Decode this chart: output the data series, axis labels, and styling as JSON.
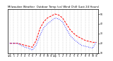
{
  "title": "Milwaukee Weather  Outdoor Temp (vs) Wind Chill (Last 24 Hours)",
  "outdoor_temp": [
    20,
    20,
    20,
    19,
    18,
    17,
    16,
    23,
    35,
    42,
    46,
    48,
    50,
    49,
    46,
    40,
    34,
    30,
    27,
    25,
    23,
    22,
    21,
    21
  ],
  "wind_chill": [
    20,
    20,
    20,
    18,
    16,
    15,
    13,
    18,
    28,
    36,
    40,
    43,
    46,
    45,
    42,
    35,
    28,
    24,
    21,
    18,
    17,
    16,
    15,
    22
  ],
  "xlabels": [
    "12a",
    "1",
    "2",
    "3",
    "4",
    "5",
    "6",
    "7",
    "8",
    "9",
    "10",
    "11",
    "12p",
    "1",
    "2",
    "3",
    "4",
    "5",
    "6",
    "7",
    "8",
    "9",
    "10",
    "11"
  ],
  "ylim": [
    10,
    55
  ],
  "yticks": [
    10,
    20,
    30,
    40,
    50
  ],
  "temp_color": "#ff0000",
  "chill_color": "#0000ff",
  "grid_color": "#999999",
  "bg_color": "#ffffff",
  "border_color": "#000000",
  "title_fontsize": 2.8,
  "tick_fontsize": 2.2,
  "linewidth": 0.7
}
